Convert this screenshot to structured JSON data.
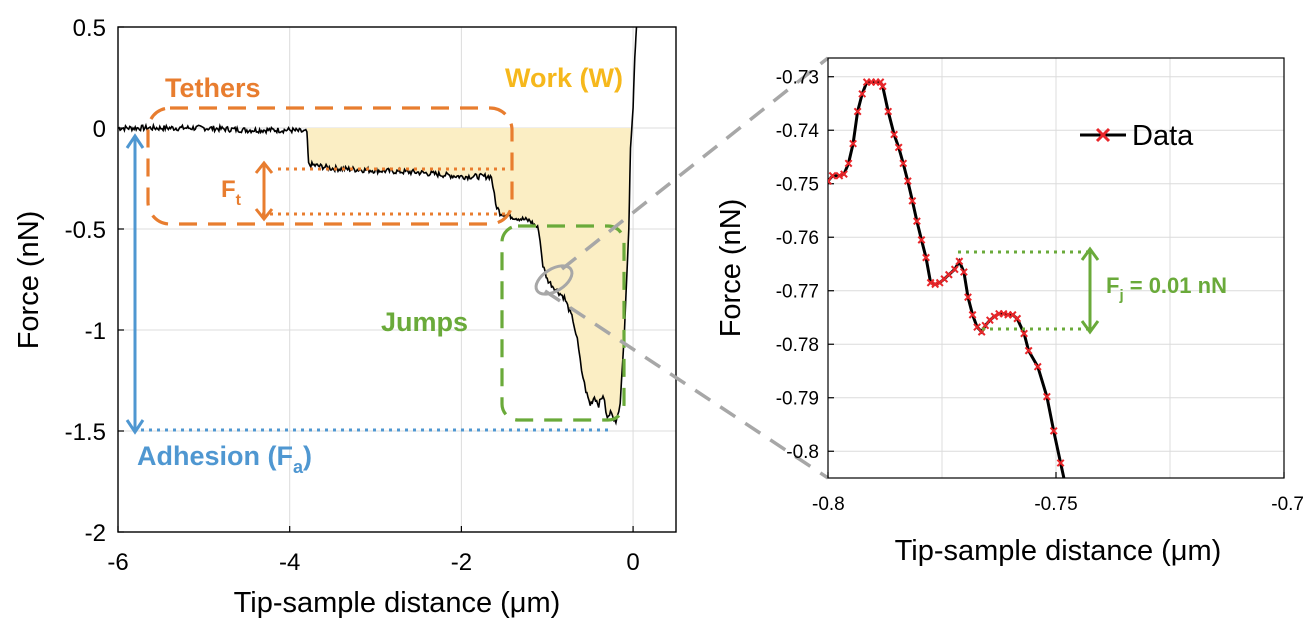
{
  "colors": {
    "orange": "#e87d2f",
    "blue": "#4f97d1",
    "green": "#6aaa3a",
    "gold": "#f6b81c",
    "fill": "#fbeec4",
    "red": "#e8262a",
    "grey": "#a7a7a7"
  },
  "chart_data": [
    {
      "type": "line",
      "xlabel": "Tip-sample distance (μm)",
      "ylabel": "Force (nN)",
      "xlim": [
        -6,
        0.5
      ],
      "ylim": [
        -2,
        0.5
      ],
      "xticks": [
        -6,
        -4,
        -2,
        0
      ],
      "xtick_labels": [
        "-6",
        "-4",
        "-2",
        "0"
      ],
      "yticks": [
        0.5,
        0,
        -0.5,
        -1,
        -1.5,
        -2
      ],
      "ytick_labels": [
        "0.5",
        "0",
        "-0.5",
        "-1",
        "-1.5",
        "-2"
      ],
      "grid": true,
      "series": [
        {
          "x": [
            -6.0,
            -5.5,
            -5.0,
            -4.5,
            -4.0,
            -3.8,
            -3.78,
            -3.5,
            -3.0,
            -2.5,
            -2.0,
            -1.65,
            -1.6,
            -1.55,
            -1.4,
            -1.2,
            -1.1,
            -1.05,
            -1.0,
            -0.9,
            -0.8,
            -0.7,
            -0.65,
            -0.6,
            -0.55,
            -0.5,
            -0.45,
            -0.4,
            -0.35,
            -0.3,
            -0.25,
            -0.2,
            -0.15,
            -0.1,
            -0.05,
            -0.03,
            0.0,
            0.02,
            0.04
          ],
          "y": [
            0.0,
            -0.0,
            0.0,
            -0.01,
            -0.01,
            -0.02,
            -0.18,
            -0.2,
            -0.21,
            -0.22,
            -0.24,
            -0.24,
            -0.38,
            -0.42,
            -0.44,
            -0.46,
            -0.5,
            -0.68,
            -0.75,
            -0.8,
            -0.84,
            -0.95,
            -1.05,
            -1.2,
            -1.3,
            -1.37,
            -1.33,
            -1.37,
            -1.32,
            -1.44,
            -1.4,
            -1.47,
            -1.35,
            -1.0,
            -0.5,
            -0.1,
            0.1,
            0.35,
            0.5
          ]
        }
      ],
      "annotations": {
        "tethers": "Tethers",
        "work": "Work (W)",
        "ft_main": "F",
        "ft_sub": "t",
        "jumps": "Jumps",
        "adhesion_main": "Adhesion (F",
        "adhesion_sub": "a",
        "adhesion_end": ")"
      }
    },
    {
      "type": "line",
      "xlabel": "Tip-sample distance (μm)",
      "ylabel": "Force (nN)",
      "xlim": [
        -0.8,
        -0.7
      ],
      "ylim": [
        -0.805,
        -0.7265
      ],
      "xticks": [
        -0.8,
        -0.75,
        -0.7
      ],
      "xtick_labels": [
        "-0.8",
        "-0.75",
        "-0.7"
      ],
      "yticks": [
        -0.73,
        -0.74,
        -0.75,
        -0.76,
        -0.77,
        -0.78,
        -0.79,
        -0.8
      ],
      "ytick_labels": [
        "-0.73",
        "-0.74",
        "-0.75",
        "-0.76",
        "-0.77",
        "-0.78",
        "-0.79",
        "-0.8"
      ],
      "grid": true,
      "legend_position": "top-right",
      "series": [
        {
          "name": "Data",
          "x": [
            -0.8,
            -0.799,
            -0.7975,
            -0.7965,
            -0.7955,
            -0.7945,
            -0.7935,
            -0.7925,
            -0.7915,
            -0.7905,
            -0.7895,
            -0.7885,
            -0.788,
            -0.7868,
            -0.7855,
            -0.7845,
            -0.7835,
            -0.7825,
            -0.7815,
            -0.7805,
            -0.7795,
            -0.7785,
            -0.7775,
            -0.7765,
            -0.7755,
            -0.7745,
            -0.7735,
            -0.7722,
            -0.7712,
            -0.7702,
            -0.7693,
            -0.7683,
            -0.7673,
            -0.7663,
            -0.7655,
            -0.7645,
            -0.7635,
            -0.7625,
            -0.7615,
            -0.7605,
            -0.7595,
            -0.7585,
            -0.757,
            -0.756,
            -0.754,
            -0.752,
            -0.7505,
            -0.749,
            -0.7475
          ],
          "y": [
            -0.7495,
            -0.7485,
            -0.7485,
            -0.7482,
            -0.7462,
            -0.7425,
            -0.7365,
            -0.7332,
            -0.731,
            -0.731,
            -0.731,
            -0.731,
            -0.7318,
            -0.7365,
            -0.7408,
            -0.7432,
            -0.7462,
            -0.7495,
            -0.7532,
            -0.757,
            -0.7605,
            -0.7638,
            -0.7685,
            -0.7688,
            -0.7685,
            -0.7678,
            -0.767,
            -0.766,
            -0.7645,
            -0.7665,
            -0.7712,
            -0.7745,
            -0.7768,
            -0.7777,
            -0.7765,
            -0.7755,
            -0.7748,
            -0.7743,
            -0.7743,
            -0.7745,
            -0.7745,
            -0.7752,
            -0.778,
            -0.7812,
            -0.7842,
            -0.7898,
            -0.7962,
            -0.8022,
            -0.808
          ]
        }
      ],
      "annotations": {
        "fj_main": "F",
        "fj_sub": "j",
        "fj_value": " = 0.01 nN"
      }
    }
  ]
}
